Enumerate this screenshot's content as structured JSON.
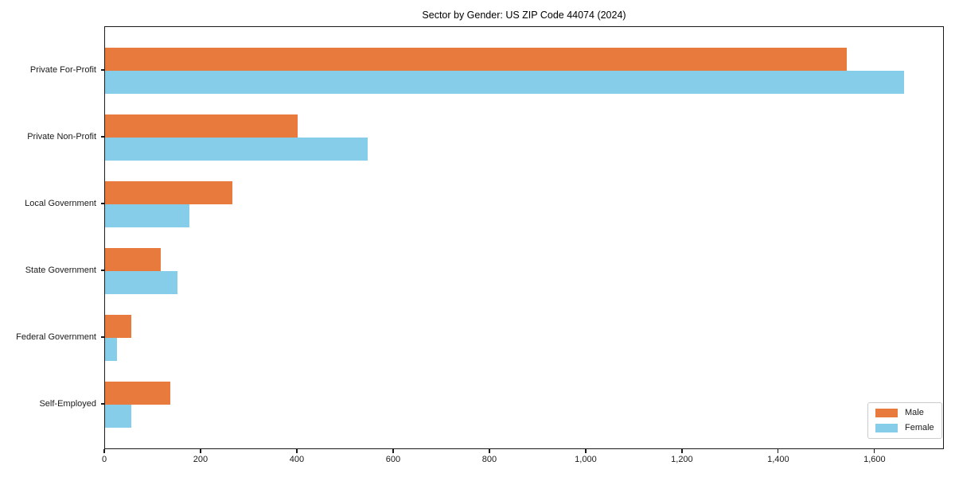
{
  "chart_data": {
    "type": "bar",
    "orientation": "horizontal",
    "title": "Sector by Gender: US ZIP Code 44074 (2024)",
    "categories": [
      "Private For-Profit",
      "Private Non-Profit",
      "Local Government",
      "State Government",
      "Federal Government",
      "Self-Employed"
    ],
    "series": [
      {
        "name": "Male",
        "color": "#E87A3D",
        "values": [
          1540,
          400,
          265,
          115,
          55,
          135
        ]
      },
      {
        "name": "Female",
        "color": "#85CDE8",
        "values": [
          1660,
          545,
          175,
          150,
          25,
          55
        ]
      }
    ],
    "xlim": [
      0,
      1744
    ],
    "x_ticks": [
      0,
      200,
      400,
      600,
      800,
      1000,
      1200,
      1400,
      1600
    ],
    "x_tick_labels": [
      "0",
      "200",
      "400",
      "600",
      "800",
      "1,000",
      "1,200",
      "1,400",
      "1,600"
    ],
    "grid": false,
    "legend_position": "lower right",
    "colors": {
      "male": "#E87A3D",
      "female": "#85CDE8",
      "spine": "#1a1a1a",
      "background": "#ffffff",
      "legend_border": "#cccccc"
    }
  }
}
